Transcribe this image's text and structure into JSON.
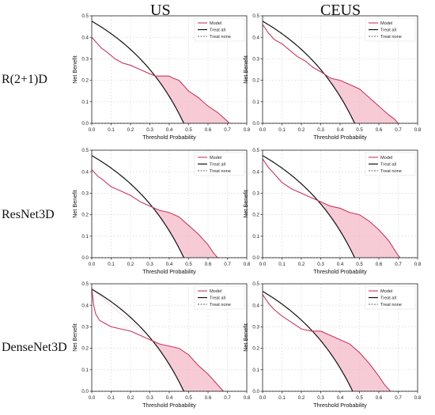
{
  "column_titles": [
    "US",
    "CEUS"
  ],
  "row_labels": [
    "R(2+1)D",
    "ResNet3D",
    "DenseNet3D"
  ],
  "colors": {
    "model": "#c8385f",
    "fill": "#f4b9c8",
    "treat_all": "#111111",
    "grid": "#d9d9d9"
  },
  "chart_data": [
    {
      "type": "line",
      "row_label": "R(2+1)D",
      "column_title": "US",
      "xlabel": "Threshold Probability",
      "ylabel": "Net Benefit",
      "xlim": [
        0,
        0.8
      ],
      "ylim": [
        0,
        0.5
      ],
      "xticks": [
        "0.0",
        "0.1",
        "0.2",
        "0.3",
        "0.4",
        "0.5",
        "0.6",
        "0.7",
        "0.8"
      ],
      "yticks": [
        "0.0",
        "0.1",
        "0.2",
        "0.3",
        "0.4",
        "0.5"
      ],
      "legend": [
        "Model",
        "Treat all",
        "Treat none"
      ],
      "legend_position": "top-right",
      "grid": true,
      "treat_all_prevalence": 0.475,
      "series": [
        {
          "name": "Model",
          "x": [
            0,
            0.02,
            0.05,
            0.08,
            0.12,
            0.16,
            0.2,
            0.25,
            0.3,
            0.33,
            0.36,
            0.4,
            0.42,
            0.45,
            0.48,
            0.5,
            0.55,
            0.6,
            0.65,
            0.7,
            0.71
          ],
          "y": [
            0.4,
            0.38,
            0.35,
            0.33,
            0.3,
            0.28,
            0.27,
            0.25,
            0.23,
            0.22,
            0.22,
            0.22,
            0.21,
            0.2,
            0.17,
            0.15,
            0.12,
            0.08,
            0.05,
            0.01,
            0
          ]
        }
      ]
    },
    {
      "type": "line",
      "row_label": "R(2+1)D",
      "column_title": "CEUS",
      "xlabel": "Threshold Probability",
      "ylabel": "Net Benefit",
      "xlim": [
        0,
        0.8
      ],
      "ylim": [
        0,
        0.5
      ],
      "xticks": [
        "0.0",
        "0.1",
        "0.2",
        "0.3",
        "0.4",
        "0.5",
        "0.6",
        "0.7",
        "0.8"
      ],
      "yticks": [
        "0.0",
        "0.1",
        "0.2",
        "0.3",
        "0.4",
        "0.5"
      ],
      "legend": [
        "Model",
        "Treat all",
        "Treat none"
      ],
      "legend_position": "top-right",
      "grid": true,
      "treat_all_prevalence": 0.475,
      "series": [
        {
          "name": "Model",
          "x": [
            0,
            0.03,
            0.06,
            0.1,
            0.14,
            0.18,
            0.22,
            0.26,
            0.3,
            0.35,
            0.4,
            0.45,
            0.5,
            0.55,
            0.6,
            0.65,
            0.68,
            0.7
          ],
          "y": [
            0.46,
            0.42,
            0.39,
            0.37,
            0.34,
            0.31,
            0.29,
            0.26,
            0.24,
            0.21,
            0.2,
            0.18,
            0.16,
            0.12,
            0.08,
            0.04,
            0.02,
            0
          ]
        }
      ]
    },
    {
      "type": "line",
      "row_label": "ResNet3D",
      "column_title": "US",
      "xlabel": "Threshold Probability",
      "ylabel": "Net Benefit",
      "xlim": [
        0,
        0.8
      ],
      "ylim": [
        0,
        0.5
      ],
      "xticks": [
        "0.0",
        "0.1",
        "0.2",
        "0.3",
        "0.4",
        "0.5",
        "0.6",
        "0.7",
        "0.8"
      ],
      "yticks": [
        "0.0",
        "0.1",
        "0.2",
        "0.3",
        "0.4",
        "0.5"
      ],
      "legend": [
        "Model",
        "Treat all",
        "Treat none"
      ],
      "legend_position": "top-right",
      "grid": true,
      "treat_all_prevalence": 0.475,
      "series": [
        {
          "name": "Model",
          "x": [
            0,
            0.03,
            0.06,
            0.1,
            0.15,
            0.2,
            0.25,
            0.3,
            0.35,
            0.4,
            0.45,
            0.5,
            0.55,
            0.6,
            0.63,
            0.65
          ],
          "y": [
            0.41,
            0.38,
            0.36,
            0.33,
            0.31,
            0.29,
            0.26,
            0.24,
            0.22,
            0.21,
            0.19,
            0.15,
            0.11,
            0.06,
            0.02,
            0
          ]
        }
      ]
    },
    {
      "type": "line",
      "row_label": "ResNet3D",
      "column_title": "CEUS",
      "xlabel": "Threshold Probability",
      "ylabel": "Net Benefit",
      "xlim": [
        0,
        0.8
      ],
      "ylim": [
        0,
        0.5
      ],
      "xticks": [
        "0.0",
        "0.1",
        "0.2",
        "0.3",
        "0.4",
        "0.5",
        "0.6",
        "0.7",
        "0.8"
      ],
      "yticks": [
        "0.0",
        "0.1",
        "0.2",
        "0.3",
        "0.4",
        "0.5"
      ],
      "legend": [
        "Model",
        "Treat all",
        "Treat none"
      ],
      "legend_position": "top-right",
      "grid": true,
      "treat_all_prevalence": 0.475,
      "series": [
        {
          "name": "Model",
          "x": [
            0,
            0.03,
            0.06,
            0.1,
            0.15,
            0.2,
            0.25,
            0.3,
            0.35,
            0.4,
            0.45,
            0.5,
            0.55,
            0.6,
            0.65,
            0.7,
            0.71
          ],
          "y": [
            0.46,
            0.42,
            0.39,
            0.35,
            0.32,
            0.3,
            0.28,
            0.26,
            0.24,
            0.23,
            0.21,
            0.2,
            0.17,
            0.13,
            0.08,
            0.01,
            0
          ]
        }
      ]
    },
    {
      "type": "line",
      "row_label": "DenseNet3D",
      "column_title": "US",
      "xlabel": "Threshold Probability",
      "ylabel": "Net Benefit",
      "xlim": [
        0,
        0.8
      ],
      "ylim": [
        0,
        0.5
      ],
      "xticks": [
        "0.0",
        "0.1",
        "0.2",
        "0.3",
        "0.4",
        "0.5",
        "0.6",
        "0.7",
        "0.8"
      ],
      "yticks": [
        "0.0",
        "0.1",
        "0.2",
        "0.3",
        "0.4",
        "0.5"
      ],
      "legend": [
        "Model",
        "Treat all",
        "Treat none"
      ],
      "legend_position": "top-right",
      "grid": true,
      "treat_all_prevalence": 0.475,
      "series": [
        {
          "name": "Model",
          "x": [
            0,
            0.01,
            0.02,
            0.04,
            0.06,
            0.1,
            0.15,
            0.2,
            0.25,
            0.3,
            0.35,
            0.4,
            0.45,
            0.5,
            0.55,
            0.6,
            0.65,
            0.68
          ],
          "y": [
            0.48,
            0.4,
            0.36,
            0.33,
            0.32,
            0.3,
            0.29,
            0.28,
            0.26,
            0.24,
            0.22,
            0.21,
            0.2,
            0.17,
            0.12,
            0.08,
            0.03,
            0
          ]
        }
      ]
    },
    {
      "type": "line",
      "row_label": "DenseNet3D",
      "column_title": "CEUS",
      "xlabel": "Threshold Probability",
      "ylabel": "Net Benefit",
      "xlim": [
        0,
        0.8
      ],
      "ylim": [
        0,
        0.5
      ],
      "xticks": [
        "0.0",
        "0.1",
        "0.2",
        "0.3",
        "0.4",
        "0.5",
        "0.6",
        "0.7",
        "0.8"
      ],
      "yticks": [
        "0.0",
        "0.1",
        "0.2",
        "0.3",
        "0.4",
        "0.5"
      ],
      "legend": [
        "Model",
        "Treat all",
        "Treat none"
      ],
      "legend_position": "top-right",
      "grid": true,
      "treat_all_prevalence": 0.465,
      "series": [
        {
          "name": "Model",
          "x": [
            0,
            0.03,
            0.06,
            0.1,
            0.15,
            0.2,
            0.25,
            0.3,
            0.35,
            0.4,
            0.45,
            0.5,
            0.55,
            0.6,
            0.63,
            0.66
          ],
          "y": [
            0.45,
            0.41,
            0.38,
            0.35,
            0.32,
            0.29,
            0.28,
            0.28,
            0.26,
            0.24,
            0.22,
            0.18,
            0.13,
            0.07,
            0.03,
            0
          ]
        }
      ]
    }
  ]
}
